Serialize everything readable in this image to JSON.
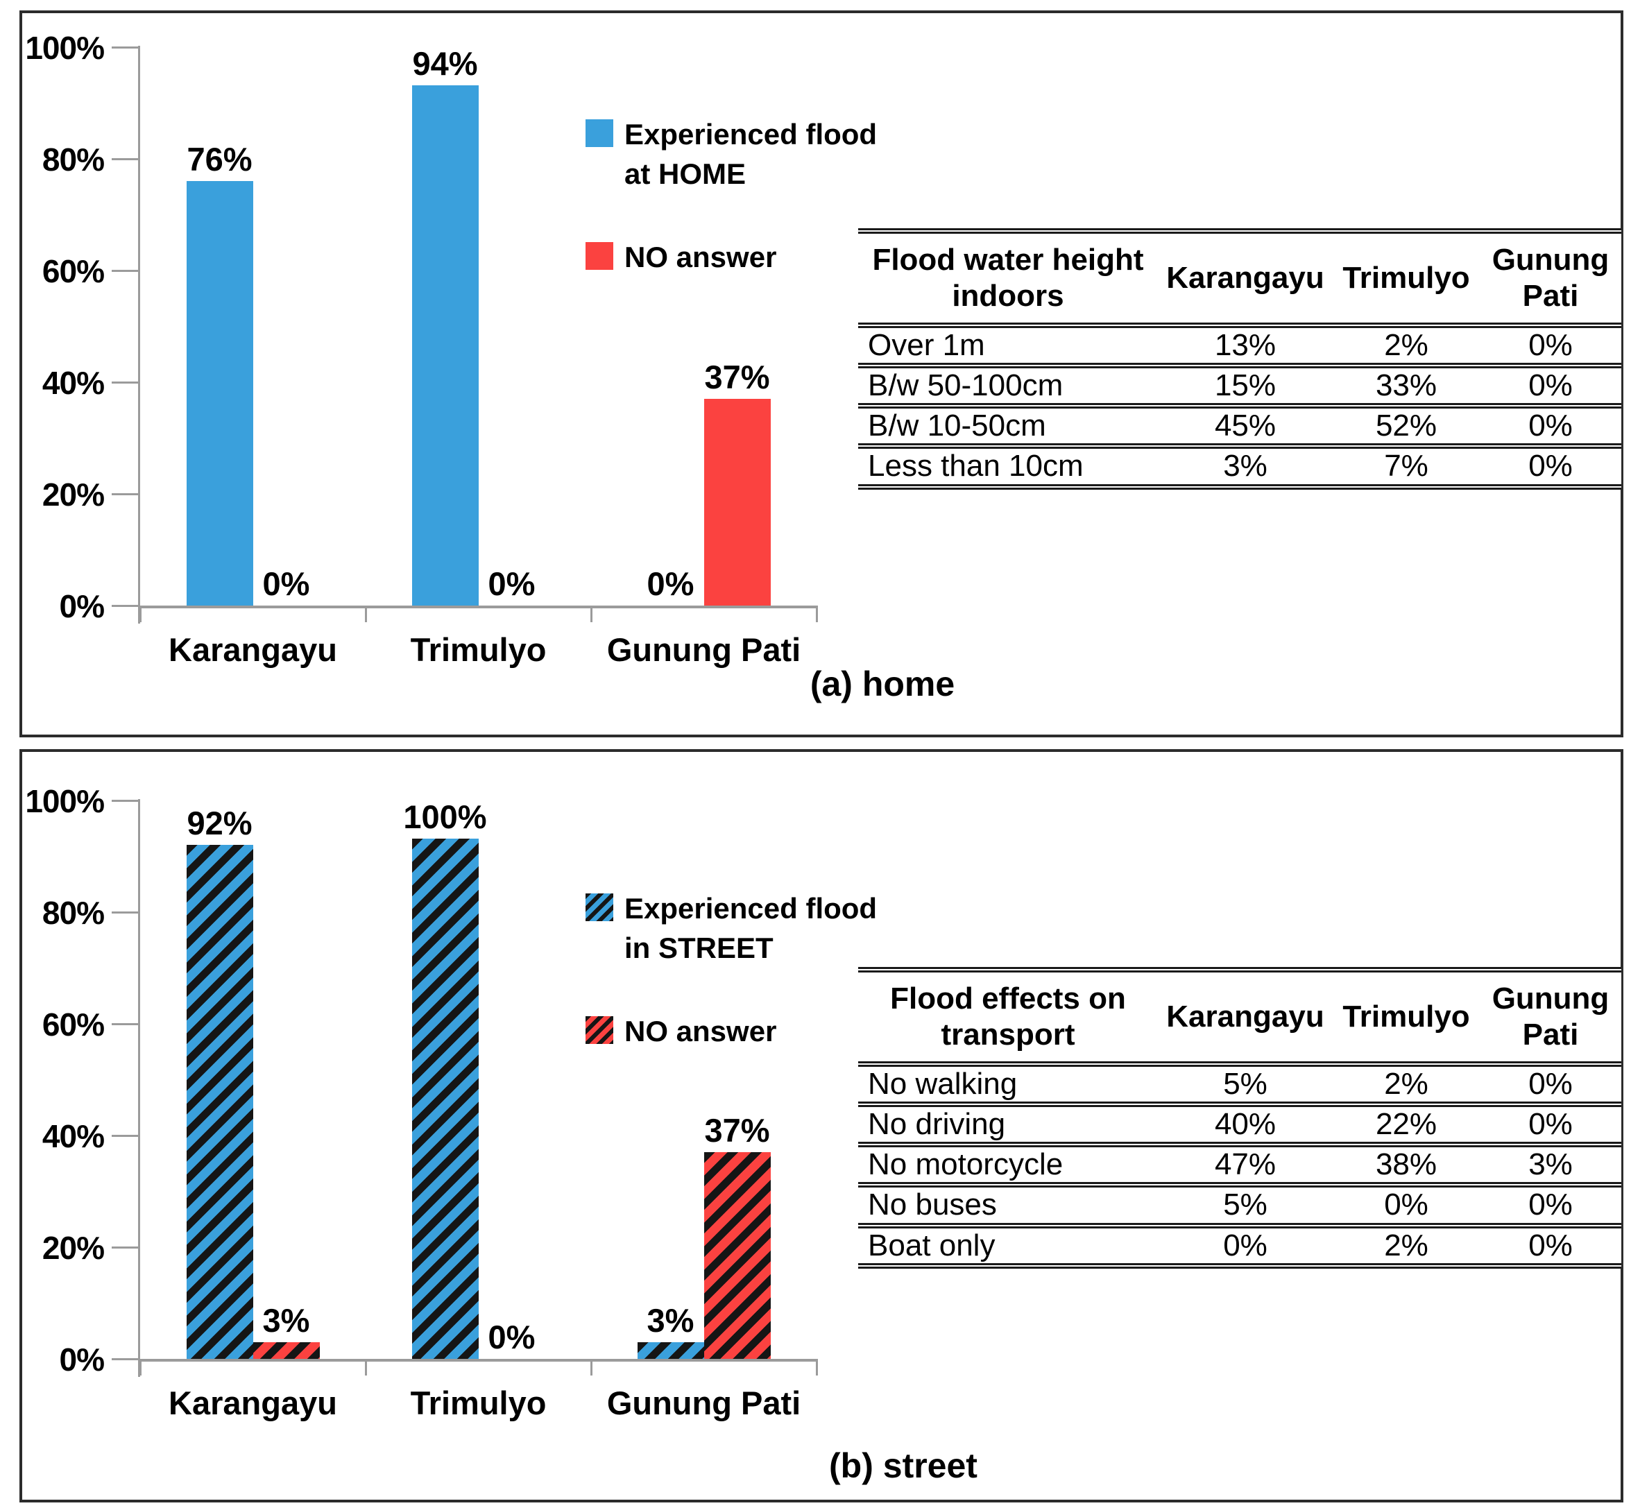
{
  "colors": {
    "series_blue": "#3AA0DC",
    "series_red": "#FB4240",
    "hatch_stripe": "#151515",
    "axis_gray": "#9B9B9B",
    "panel_border": "#2C2C2C",
    "table_rule": "#1A1A1A",
    "text": "#000000"
  },
  "chart_data": [
    {
      "type": "bar",
      "title": "(a) home",
      "categories": [
        "Karangayu",
        "Trimulyo",
        "Gunung Pati"
      ],
      "series": [
        {
          "name": "Experienced flood at HOME",
          "color": "#3AA0DC",
          "hatch": false,
          "values": [
            76,
            94,
            0
          ]
        },
        {
          "name": "NO answer",
          "color": "#FB4240",
          "hatch": false,
          "values": [
            0,
            0,
            37
          ]
        }
      ],
      "ylim": [
        0,
        100
      ],
      "yticks": [
        100,
        80,
        60,
        40,
        20,
        0
      ],
      "ytick_suffix": "%",
      "data_label_suffix": "%",
      "grid": false,
      "legend_position": "inside-right-top"
    },
    {
      "type": "bar",
      "title": "(b) street",
      "categories": [
        "Karangayu",
        "Trimulyo",
        "Gunung Pati"
      ],
      "series": [
        {
          "name": "Experienced flood in STREET",
          "color": "#3AA0DC",
          "hatch": true,
          "values": [
            92,
            100,
            3
          ]
        },
        {
          "name": "NO answer",
          "color": "#FB4240",
          "hatch": true,
          "values": [
            3,
            0,
            37
          ]
        }
      ],
      "ylim": [
        0,
        100
      ],
      "yticks": [
        100,
        80,
        60,
        40,
        20,
        0
      ],
      "ytick_suffix": "%",
      "data_label_suffix": "%",
      "grid": false,
      "legend_position": "inside-right-top"
    }
  ],
  "panels": [
    {
      "caption": "(a) home",
      "legend": [
        {
          "lines": [
            "Experienced flood",
            "at HOME"
          ],
          "color": "#3AA0DC",
          "hatch": false
        },
        {
          "lines": [
            "NO answer"
          ],
          "color": "#FB4240",
          "hatch": false
        }
      ],
      "table": {
        "header": [
          "Flood water height indoors",
          "Karangayu",
          "Trimulyo",
          "Gunung Pati"
        ],
        "rows": [
          [
            "Over 1m",
            "13%",
            "2%",
            "0%"
          ],
          [
            "B/w 50-100cm",
            "15%",
            "33%",
            "0%"
          ],
          [
            "B/w 10-50cm",
            "45%",
            "52%",
            "0%"
          ],
          [
            "Less than 10cm",
            "3%",
            "7%",
            "0%"
          ]
        ]
      }
    },
    {
      "caption": "(b) street",
      "legend": [
        {
          "lines": [
            "Experienced flood",
            "in STREET"
          ],
          "color": "#3AA0DC",
          "hatch": true
        },
        {
          "lines": [
            "NO answer"
          ],
          "color": "#FB4240",
          "hatch": true
        }
      ],
      "table": {
        "header": [
          "Flood effects on transport",
          "Karangayu",
          "Trimulyo",
          "Gunung Pati"
        ],
        "rows": [
          [
            "No walking",
            "5%",
            "2%",
            "0%"
          ],
          [
            "No driving",
            "40%",
            "22%",
            "0%"
          ],
          [
            "No motorcycle",
            "47%",
            "38%",
            "3%"
          ],
          [
            "No buses",
            "5%",
            "0%",
            "0%"
          ],
          [
            "Boat only",
            "0%",
            "2%",
            "0%"
          ]
        ]
      }
    }
  ]
}
